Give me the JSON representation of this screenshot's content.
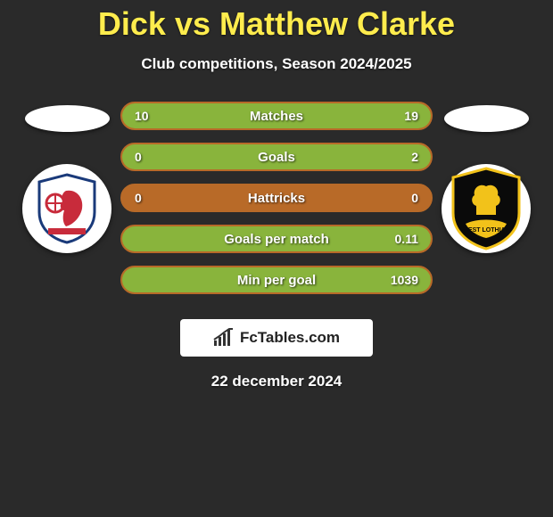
{
  "title": "Dick vs Matthew Clarke",
  "subtitle": "Club competitions, Season 2024/2025",
  "date": "22 december 2024",
  "brand": "FcTables.com",
  "colors": {
    "bar_border": "#b86a28",
    "bar_base": "#b86a28",
    "bar_fill": "#89b43c",
    "title": "#ffec4d"
  },
  "bars": [
    {
      "label": "Matches",
      "left": "10",
      "right": "19",
      "left_pct": 34,
      "right_pct": 66
    },
    {
      "label": "Goals",
      "left": "0",
      "right": "2",
      "left_pct": 0,
      "right_pct": 100
    },
    {
      "label": "Hattricks",
      "left": "0",
      "right": "0",
      "left_pct": 0,
      "right_pct": 0
    },
    {
      "label": "Goals per match",
      "left": "",
      "right": "0.11",
      "left_pct": 0,
      "right_pct": 100
    },
    {
      "label": "Min per goal",
      "left": "",
      "right": "1039",
      "left_pct": 0,
      "right_pct": 100
    }
  ],
  "left_player": {
    "crest_primary": "#c82b3b",
    "crest_bg": "#ffffff",
    "crest_accent": "#1a3a7a"
  },
  "right_player": {
    "crest_primary": "#f2c21a",
    "crest_bg": "#0a0a0a",
    "crest_accent": "#f2c21a"
  }
}
